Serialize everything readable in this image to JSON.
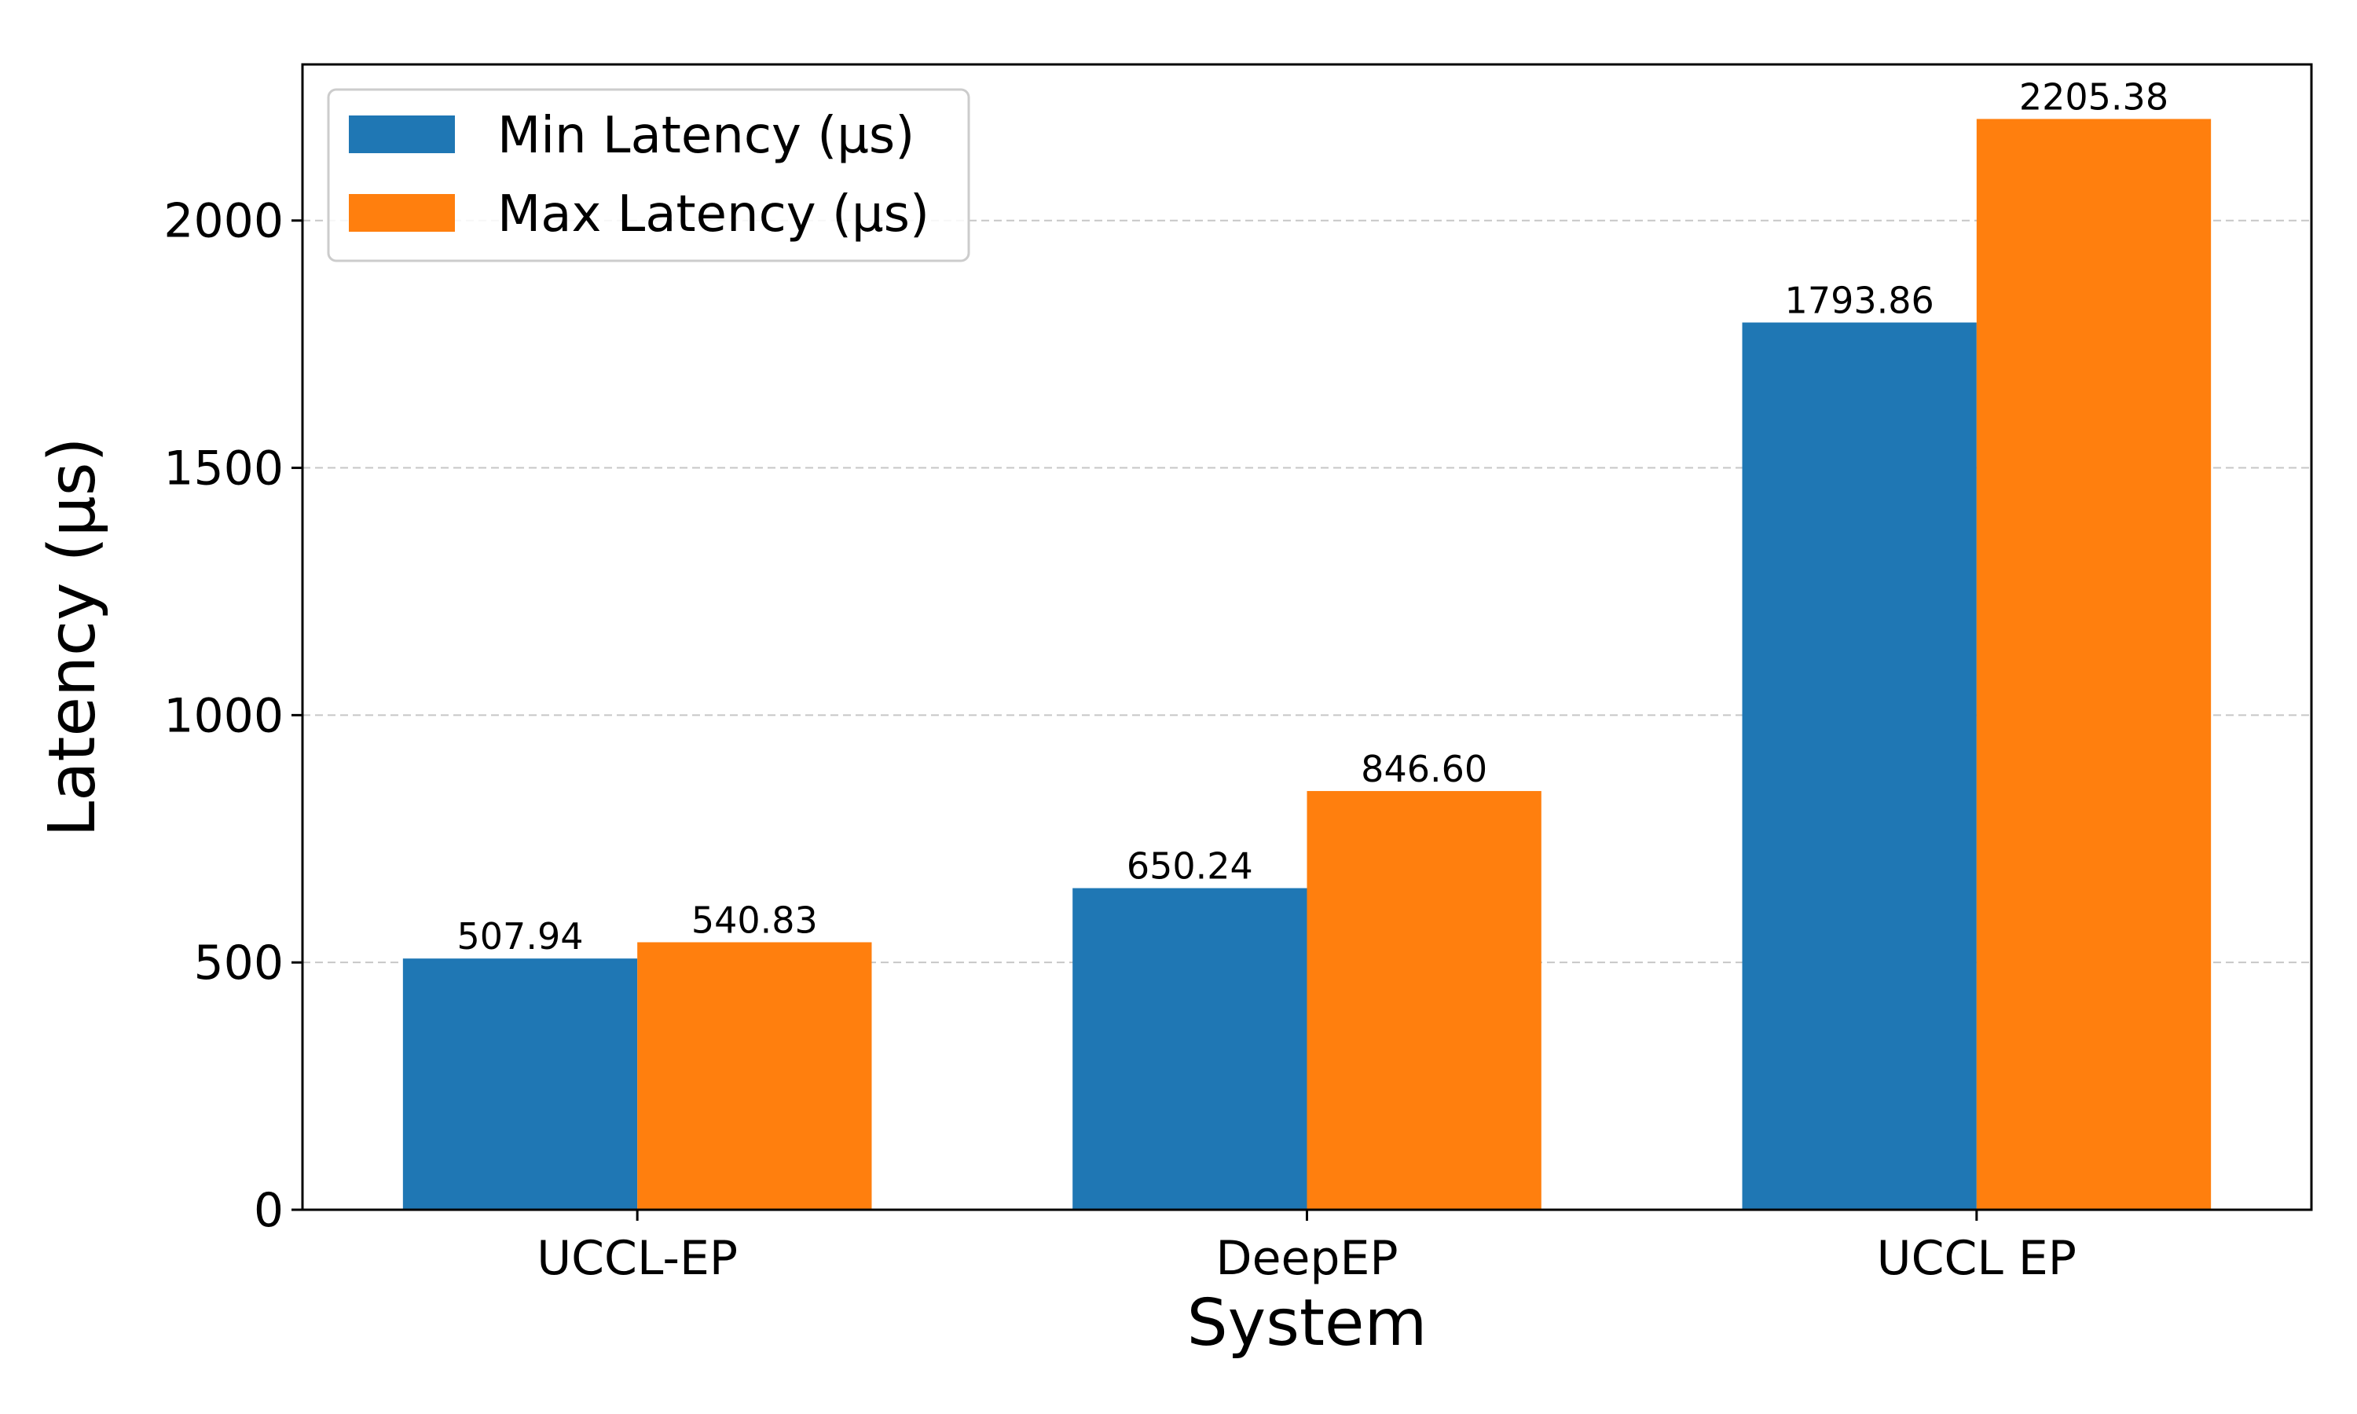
{
  "chart_data": {
    "type": "bar",
    "title": "",
    "xlabel": "System",
    "ylabel": "Latency (µs)",
    "categories": [
      "UCCL-EP",
      "DeepEP",
      "UCCL EP"
    ],
    "series": [
      {
        "name": "Min Latency (µs)",
        "color": "#1f77b4",
        "values": [
          507.94,
          650.24,
          1793.86
        ],
        "labels": [
          "507.94",
          "650.24",
          "1793.86"
        ]
      },
      {
        "name": "Max Latency (µs)",
        "color": "#ff7f0e",
        "values": [
          540.83,
          846.6,
          2205.38
        ],
        "labels": [
          "540.83",
          "846.60",
          "2205.38"
        ]
      }
    ],
    "ylim": [
      0,
      2315.65
    ],
    "yticks": [
      0,
      500,
      1000,
      1500,
      2000
    ],
    "ytick_labels": [
      "0",
      "500",
      "1000",
      "1500",
      "2000"
    ],
    "grid": "y-dashed",
    "legend_position": "top-left"
  }
}
